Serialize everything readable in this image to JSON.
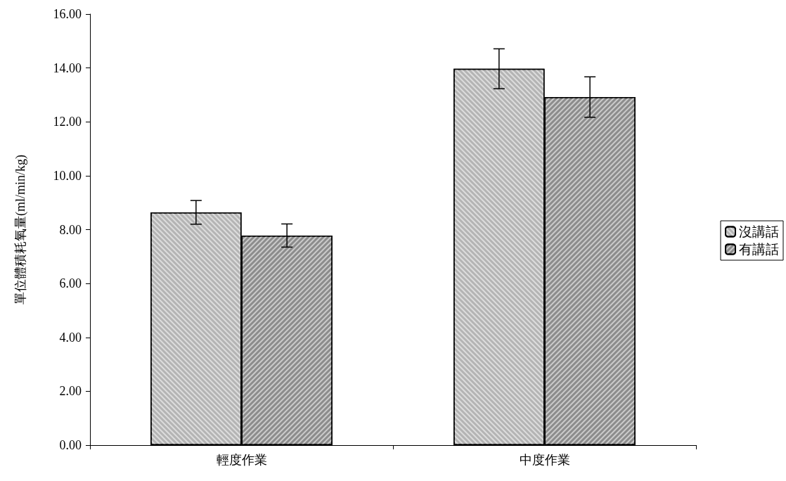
{
  "chart_data": {
    "type": "bar",
    "ylabel": "單位體積耗氧量(ml/min/kg)",
    "categories": [
      "輕度作業",
      "中度作業"
    ],
    "series": [
      {
        "name": "沒講話",
        "color": "#b4b4b4",
        "values": [
          8.64,
          13.97
        ],
        "errors": [
          0.44,
          0.74
        ]
      },
      {
        "name": "有講話",
        "color": "#8c8c8c",
        "values": [
          7.78,
          12.92
        ],
        "errors": [
          0.43,
          0.75
        ]
      }
    ],
    "ylim": [
      0,
      16
    ],
    "yticks": [
      {
        "value": 0,
        "label": "0.00"
      },
      {
        "value": 2,
        "label": "2.00"
      },
      {
        "value": 4,
        "label": "4.00"
      },
      {
        "value": 6,
        "label": "6.00"
      },
      {
        "value": 8,
        "label": "8.00"
      },
      {
        "value": 10,
        "label": "10.00"
      },
      {
        "value": 12,
        "label": "12.00"
      },
      {
        "value": 14,
        "label": "14.00"
      },
      {
        "value": 16,
        "label": "16.00"
      }
    ],
    "grid": false,
    "legend": "right"
  }
}
